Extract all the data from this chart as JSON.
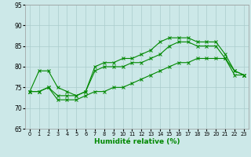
{
  "xlabel": "Humidité relative (%)",
  "xlim": [
    -0.5,
    23.5
  ],
  "ylim": [
    65,
    95
  ],
  "xticks": [
    0,
    1,
    2,
    3,
    4,
    5,
    6,
    7,
    8,
    9,
    10,
    11,
    12,
    13,
    14,
    15,
    16,
    17,
    18,
    19,
    20,
    21,
    22,
    23
  ],
  "yticks": [
    65,
    70,
    75,
    80,
    85,
    90,
    95
  ],
  "bg_color": "#cce8e8",
  "grid_color": "#aacccc",
  "line_color": "#008800",
  "line1_y": [
    74,
    79,
    79,
    75,
    74,
    73,
    74,
    80,
    81,
    81,
    82,
    82,
    83,
    84,
    86,
    87,
    87,
    87,
    86,
    86,
    86,
    83,
    79,
    78
  ],
  "line2_y": [
    74,
    74,
    75,
    73,
    73,
    73,
    74,
    79,
    80,
    80,
    80,
    81,
    81,
    82,
    83,
    85,
    86,
    86,
    85,
    85,
    85,
    82,
    79,
    78
  ],
  "line3_y": [
    74,
    74,
    75,
    72,
    72,
    72,
    73,
    74,
    74,
    75,
    75,
    76,
    77,
    78,
    79,
    80,
    81,
    81,
    82,
    82,
    82,
    82,
    78,
    78
  ]
}
